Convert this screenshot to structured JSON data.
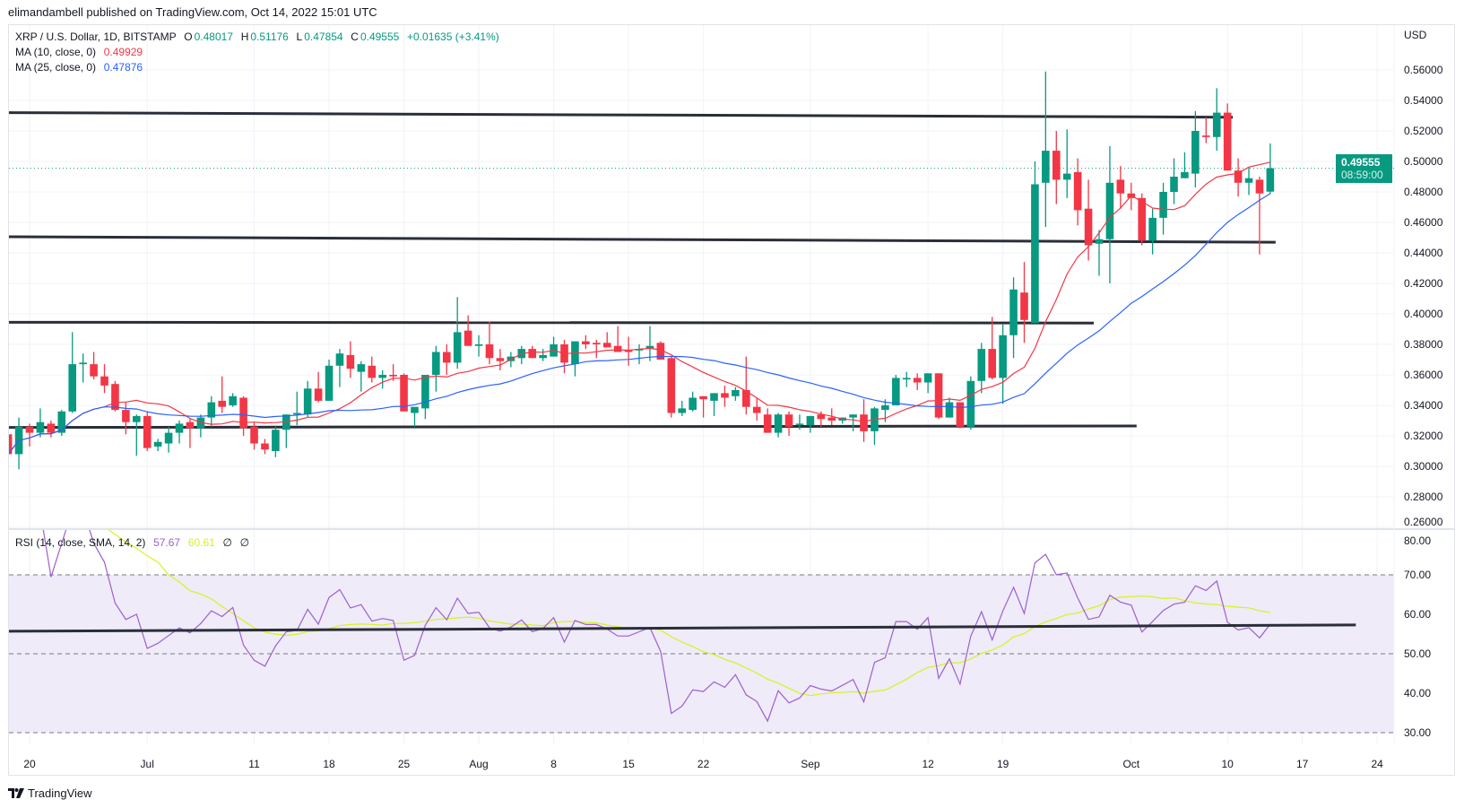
{
  "header": {
    "published": "elimandambell published on TradingView.com, Oct 14, 2022 15:01 UTC"
  },
  "legend": {
    "symbol": "XRP / U.S. Dollar, 1D, BITSTAMP",
    "open_label": "O",
    "open": "0.48017",
    "high_label": "H",
    "high": "0.51176",
    "low_label": "L",
    "low": "0.47854",
    "close_label": "C",
    "close": "0.49555",
    "change": "+0.01635 (+3.41%)",
    "ma10_label": "MA (10, close, 0)",
    "ma10_value": "0.49929",
    "ma25_label": "MA (25, close, 0)",
    "ma25_value": "0.47876",
    "rsi_label": "RSI (14, close, SMA, 14, 2)",
    "rsi_value": "57.67",
    "rsi_ma_value": "60.61",
    "rsi_extra1": "∅",
    "rsi_extra2": "∅"
  },
  "price_box": {
    "price": "0.49555",
    "countdown": "08:59:00"
  },
  "footer": {
    "brand": "TradingView"
  },
  "colors": {
    "up": "#089981",
    "down": "#F23645",
    "ma10": "#F23645",
    "ma25": "#2962FF",
    "rsi": "#9c5fd0",
    "rsi_ma": "#d8f21c",
    "trendline": "#2a2e39",
    "rsi_band": "#efebf8"
  },
  "chart_data": {
    "type": "candlestick",
    "currency_label": "USD",
    "start_date": "2022-06-18",
    "ohlc": [
      [
        0.321,
        0.33,
        0.3,
        0.308
      ],
      [
        0.308,
        0.332,
        0.298,
        0.326
      ],
      [
        0.326,
        0.328,
        0.313,
        0.322
      ],
      [
        0.322,
        0.338,
        0.319,
        0.329
      ],
      [
        0.328,
        0.33,
        0.319,
        0.322
      ],
      [
        0.322,
        0.337,
        0.32,
        0.336
      ],
      [
        0.336,
        0.388,
        0.335,
        0.367
      ],
      [
        0.367,
        0.374,
        0.355,
        0.368
      ],
      [
        0.367,
        0.375,
        0.357,
        0.359
      ],
      [
        0.359,
        0.367,
        0.348,
        0.353
      ],
      [
        0.354,
        0.356,
        0.336,
        0.337
      ],
      [
        0.337,
        0.342,
        0.321,
        0.329
      ],
      [
        0.329,
        0.334,
        0.307,
        0.333
      ],
      [
        0.333,
        0.336,
        0.31,
        0.312
      ],
      [
        0.313,
        0.318,
        0.31,
        0.316
      ],
      [
        0.315,
        0.326,
        0.309,
        0.322
      ],
      [
        0.322,
        0.33,
        0.315,
        0.328
      ],
      [
        0.329,
        0.331,
        0.312,
        0.325
      ],
      [
        0.325,
        0.334,
        0.319,
        0.332
      ],
      [
        0.332,
        0.346,
        0.326,
        0.342
      ],
      [
        0.343,
        0.359,
        0.335,
        0.339
      ],
      [
        0.34,
        0.348,
        0.339,
        0.346
      ],
      [
        0.345,
        0.346,
        0.32,
        0.325
      ],
      [
        0.326,
        0.329,
        0.311,
        0.315
      ],
      [
        0.315,
        0.318,
        0.308,
        0.311
      ],
      [
        0.31,
        0.326,
        0.306,
        0.324
      ],
      [
        0.324,
        0.334,
        0.312,
        0.334
      ],
      [
        0.334,
        0.349,
        0.327,
        0.335
      ],
      [
        0.334,
        0.356,
        0.332,
        0.351
      ],
      [
        0.351,
        0.362,
        0.342,
        0.343
      ],
      [
        0.343,
        0.37,
        0.343,
        0.366
      ],
      [
        0.366,
        0.377,
        0.352,
        0.374
      ],
      [
        0.373,
        0.382,
        0.358,
        0.364
      ],
      [
        0.362,
        0.369,
        0.349,
        0.367
      ],
      [
        0.366,
        0.372,
        0.355,
        0.358
      ],
      [
        0.358,
        0.363,
        0.351,
        0.36
      ],
      [
        0.36,
        0.367,
        0.356,
        0.359
      ],
      [
        0.36,
        0.361,
        0.336,
        0.336
      ],
      [
        0.335,
        0.339,
        0.326,
        0.339
      ],
      [
        0.338,
        0.36,
        0.331,
        0.36
      ],
      [
        0.36,
        0.379,
        0.349,
        0.375
      ],
      [
        0.375,
        0.38,
        0.36,
        0.368
      ],
      [
        0.368,
        0.411,
        0.364,
        0.388
      ],
      [
        0.389,
        0.399,
        0.379,
        0.379
      ],
      [
        0.379,
        0.386,
        0.372,
        0.38
      ],
      [
        0.38,
        0.395,
        0.367,
        0.371
      ],
      [
        0.371,
        0.377,
        0.363,
        0.369
      ],
      [
        0.369,
        0.375,
        0.365,
        0.372
      ],
      [
        0.371,
        0.379,
        0.367,
        0.377
      ],
      [
        0.377,
        0.379,
        0.371,
        0.371
      ],
      [
        0.371,
        0.377,
        0.369,
        0.373
      ],
      [
        0.372,
        0.385,
        0.372,
        0.38
      ],
      [
        0.38,
        0.383,
        0.361,
        0.368
      ],
      [
        0.367,
        0.382,
        0.359,
        0.382
      ],
      [
        0.382,
        0.386,
        0.377,
        0.38
      ],
      [
        0.381,
        0.383,
        0.371,
        0.38
      ],
      [
        0.381,
        0.388,
        0.379,
        0.378
      ],
      [
        0.379,
        0.392,
        0.375,
        0.375
      ],
      [
        0.376,
        0.385,
        0.366,
        0.375
      ],
      [
        0.376,
        0.38,
        0.367,
        0.377
      ],
      [
        0.377,
        0.392,
        0.369,
        0.379
      ],
      [
        0.381,
        0.382,
        0.37,
        0.37
      ],
      [
        0.371,
        0.372,
        0.332,
        0.335
      ],
      [
        0.335,
        0.343,
        0.333,
        0.338
      ],
      [
        0.337,
        0.349,
        0.336,
        0.345
      ],
      [
        0.346,
        0.346,
        0.332,
        0.344
      ],
      [
        0.343,
        0.348,
        0.333,
        0.348
      ],
      [
        0.348,
        0.353,
        0.339,
        0.345
      ],
      [
        0.346,
        0.352,
        0.343,
        0.35
      ],
      [
        0.35,
        0.372,
        0.334,
        0.339
      ],
      [
        0.339,
        0.345,
        0.33,
        0.335
      ],
      [
        0.334,
        0.338,
        0.322,
        0.322
      ],
      [
        0.322,
        0.335,
        0.319,
        0.334
      ],
      [
        0.334,
        0.336,
        0.32,
        0.326
      ],
      [
        0.328,
        0.334,
        0.324,
        0.328
      ],
      [
        0.327,
        0.333,
        0.322,
        0.333
      ],
      [
        0.334,
        0.336,
        0.326,
        0.331
      ],
      [
        0.332,
        0.338,
        0.327,
        0.33
      ],
      [
        0.33,
        0.332,
        0.328,
        0.332
      ],
      [
        0.332,
        0.334,
        0.323,
        0.334
      ],
      [
        0.334,
        0.344,
        0.316,
        0.323
      ],
      [
        0.323,
        0.339,
        0.314,
        0.338
      ],
      [
        0.337,
        0.344,
        0.329,
        0.34
      ],
      [
        0.34,
        0.36,
        0.34,
        0.358
      ],
      [
        0.357,
        0.362,
        0.352,
        0.358
      ],
      [
        0.358,
        0.361,
        0.35,
        0.355
      ],
      [
        0.355,
        0.361,
        0.348,
        0.361
      ],
      [
        0.361,
        0.361,
        0.331,
        0.332
      ],
      [
        0.332,
        0.345,
        0.332,
        0.342
      ],
      [
        0.342,
        0.342,
        0.325,
        0.326
      ],
      [
        0.326,
        0.359,
        0.324,
        0.356
      ],
      [
        0.356,
        0.381,
        0.348,
        0.377
      ],
      [
        0.377,
        0.398,
        0.357,
        0.358
      ],
      [
        0.358,
        0.393,
        0.341,
        0.386
      ],
      [
        0.386,
        0.424,
        0.371,
        0.416
      ],
      [
        0.414,
        0.434,
        0.381,
        0.396
      ],
      [
        0.394,
        0.5,
        0.394,
        0.485
      ],
      [
        0.486,
        0.559,
        0.457,
        0.507
      ],
      [
        0.507,
        0.52,
        0.472,
        0.488
      ],
      [
        0.488,
        0.521,
        0.476,
        0.492
      ],
      [
        0.493,
        0.502,
        0.458,
        0.468
      ],
      [
        0.469,
        0.488,
        0.435,
        0.445
      ],
      [
        0.446,
        0.455,
        0.425,
        0.449
      ],
      [
        0.449,
        0.51,
        0.42,
        0.486
      ],
      [
        0.488,
        0.497,
        0.469,
        0.479
      ],
      [
        0.479,
        0.486,
        0.468,
        0.476
      ],
      [
        0.476,
        0.479,
        0.445,
        0.448
      ],
      [
        0.448,
        0.469,
        0.439,
        0.463
      ],
      [
        0.463,
        0.486,
        0.452,
        0.48
      ],
      [
        0.48,
        0.502,
        0.472,
        0.49
      ],
      [
        0.489,
        0.506,
        0.489,
        0.493
      ],
      [
        0.492,
        0.533,
        0.483,
        0.52
      ],
      [
        0.517,
        0.529,
        0.512,
        0.516
      ],
      [
        0.516,
        0.548,
        0.507,
        0.532
      ],
      [
        0.532,
        0.538,
        0.494,
        0.494
      ],
      [
        0.494,
        0.502,
        0.477,
        0.486
      ],
      [
        0.486,
        0.496,
        0.478,
        0.489
      ],
      [
        0.488,
        0.49,
        0.439,
        0.479
      ],
      [
        0.48017,
        0.51176,
        0.47854,
        0.49555
      ]
    ],
    "last_price": 0.49555,
    "price_axis": {
      "ticks": [
        "0.56000",
        "0.54000",
        "0.52000",
        "0.50000",
        "0.48000",
        "0.46000",
        "0.44000",
        "0.42000",
        "0.40000",
        "0.38000",
        "0.36000",
        "0.34000",
        "0.32000",
        "0.30000",
        "0.28000",
        "0.26000"
      ],
      "range": [
        0.26,
        0.56
      ]
    },
    "rsi_axis": {
      "ticks": [
        "80.00",
        "70.00",
        "60.00",
        "50.00",
        "40.00",
        "30.00"
      ],
      "band": [
        30,
        70
      ],
      "mid": 50
    },
    "date_axis": [
      {
        "label": "20",
        "date": "2022-06-20"
      },
      {
        "label": "Jul",
        "date": "2022-07-01"
      },
      {
        "label": "11",
        "date": "2022-07-11"
      },
      {
        "label": "18",
        "date": "2022-07-18"
      },
      {
        "label": "25",
        "date": "2022-07-25"
      },
      {
        "label": "Aug",
        "date": "2022-08-01"
      },
      {
        "label": "8",
        "date": "2022-08-08"
      },
      {
        "label": "15",
        "date": "2022-08-15"
      },
      {
        "label": "22",
        "date": "2022-08-22"
      },
      {
        "label": "Sep",
        "date": "2022-09-01"
      },
      {
        "label": "12",
        "date": "2022-09-12"
      },
      {
        "label": "19",
        "date": "2022-09-19"
      },
      {
        "label": "Oct",
        "date": "2022-10-01"
      },
      {
        "label": "10",
        "date": "2022-10-10"
      },
      {
        "label": "17",
        "date": "2022-10-17"
      },
      {
        "label": "24",
        "date": "2022-10-24"
      }
    ],
    "trendlines": [
      {
        "from": {
          "date": "2022-06-18",
          "price": 0.532
        },
        "to": {
          "date": "2022-10-10",
          "price": 0.529
        }
      },
      {
        "from": {
          "date": "2022-06-18",
          "price": 0.4506
        },
        "to": {
          "date": "2022-10-14",
          "price": 0.447
        }
      },
      {
        "from": {
          "date": "2022-06-18",
          "price": 0.3945
        },
        "to": {
          "date": "2022-09-27",
          "price": 0.394
        }
      },
      {
        "from": {
          "date": "2022-06-18",
          "price": 0.3255
        },
        "to": {
          "date": "2022-10-01",
          "price": 0.3265
        }
      }
    ],
    "rsi_trendline": {
      "from": {
        "date": "2022-06-18",
        "value": 55.7
      },
      "to": {
        "date": "2022-10-22",
        "value": 57.3
      }
    },
    "indicators": {
      "ma_periods": [
        10,
        25
      ],
      "rsi_period": 14,
      "rsi_ma_period": 14
    }
  }
}
